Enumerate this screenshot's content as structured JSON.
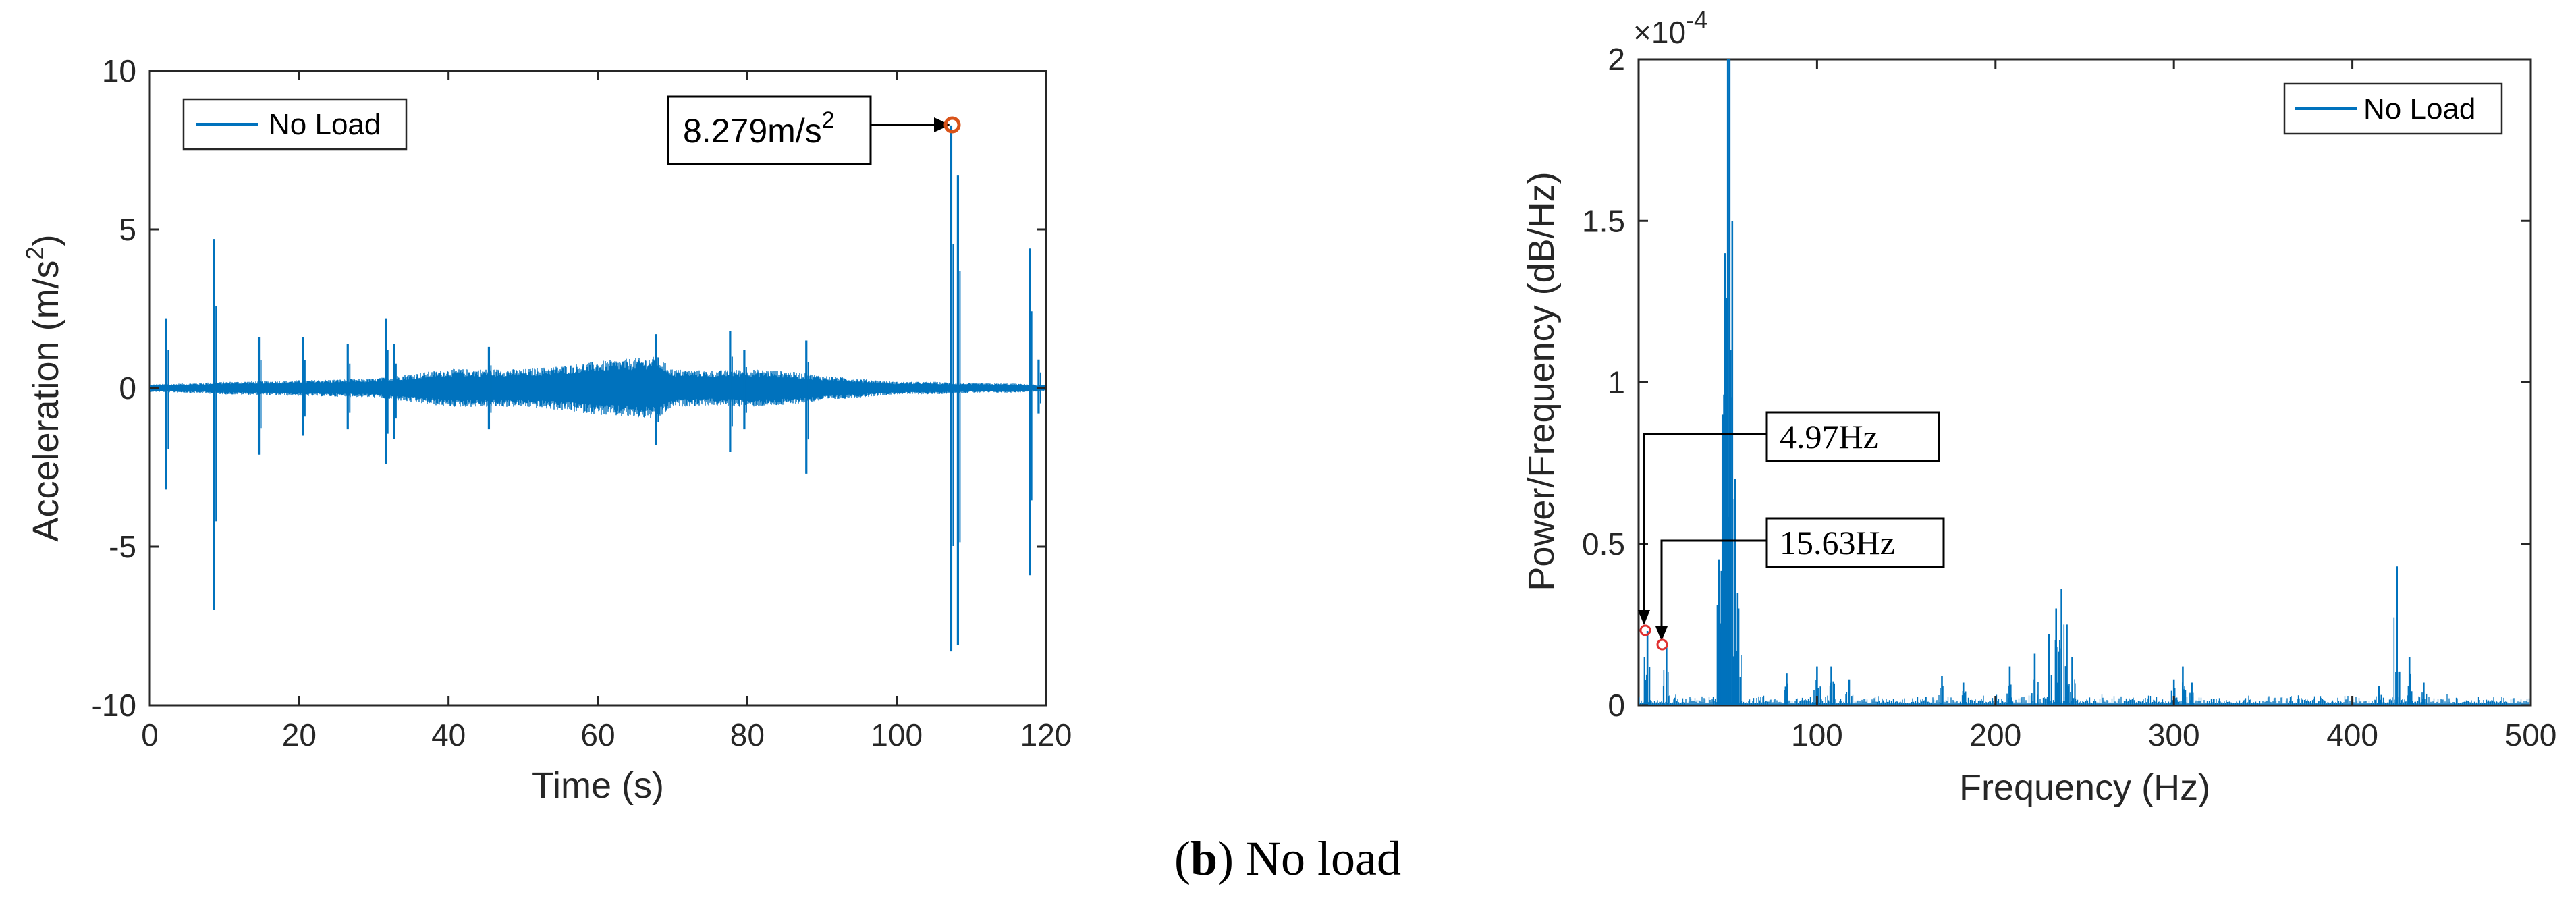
{
  "caption": {
    "label": "b",
    "open": "(",
    "close": ")",
    "text": " No load"
  },
  "colors": {
    "signal": "#0072BD",
    "marker": "#D95319",
    "axis": "#262626",
    "bg": "#ffffff"
  },
  "chart_data": [
    {
      "type": "line",
      "title": "",
      "xlabel": "Time (s)",
      "ylabel_main": "Acceleration (m/s",
      "ylabel_sup": "2",
      "ylabel_close": ")",
      "xlim": [
        0,
        120
      ],
      "ylim": [
        -10,
        10
      ],
      "xticks": [
        0,
        20,
        40,
        60,
        80,
        100,
        120
      ],
      "yticks": [
        10,
        5,
        0,
        -5,
        -10
      ],
      "legend": {
        "label": "No Load",
        "position": "top-left"
      },
      "series": [
        {
          "name": "No Load",
          "baseline_noise": [
            [
              0,
              0.12
            ],
            [
              5,
              0.15
            ],
            [
              10,
              0.2
            ],
            [
              20,
              0.25
            ],
            [
              30,
              0.3
            ],
            [
              35,
              0.45
            ],
            [
              40,
              0.6
            ],
            [
              50,
              0.6
            ],
            [
              55,
              0.7
            ],
            [
              60,
              0.85
            ],
            [
              65,
              0.95
            ],
            [
              68,
              1.0
            ],
            [
              70,
              0.6
            ],
            [
              75,
              0.55
            ],
            [
              80,
              0.6
            ],
            [
              85,
              0.55
            ],
            [
              90,
              0.4
            ],
            [
              95,
              0.3
            ],
            [
              100,
              0.2
            ],
            [
              105,
              0.2
            ],
            [
              110,
              0.15
            ],
            [
              115,
              0.15
            ],
            [
              120,
              0.1
            ]
          ],
          "spikes": [
            {
              "t": 2.2,
              "max": 2.2,
              "min": -3.2
            },
            {
              "t": 8.6,
              "max": 4.7,
              "min": -7.0
            },
            {
              "t": 14.6,
              "max": 1.6,
              "min": -2.1
            },
            {
              "t": 20.5,
              "max": 1.6,
              "min": -1.5
            },
            {
              "t": 26.5,
              "max": 1.4,
              "min": -1.3
            },
            {
              "t": 31.6,
              "max": 2.2,
              "min": -2.4
            },
            {
              "t": 32.7,
              "max": 1.4,
              "min": -1.6
            },
            {
              "t": 45.4,
              "max": 1.3,
              "min": -1.3
            },
            {
              "t": 67.8,
              "max": 1.7,
              "min": -1.8
            },
            {
              "t": 77.7,
              "max": 1.8,
              "min": -2.0
            },
            {
              "t": 79.6,
              "max": 1.2,
              "min": -1.3
            },
            {
              "t": 87.9,
              "max": 1.5,
              "min": -2.7
            },
            {
              "t": 107.3,
              "max": 8.279,
              "min": -8.3
            },
            {
              "t": 108.2,
              "max": 6.7,
              "min": -8.1
            },
            {
              "t": 117.8,
              "max": 4.4,
              "min": -5.9
            },
            {
              "t": 119.0,
              "max": 0.9,
              "min": -0.8
            }
          ]
        }
      ],
      "annotations": [
        {
          "text_main": "8.279m/s",
          "text_sup": "2",
          "x": 107.3,
          "y": 8.279
        }
      ]
    },
    {
      "type": "line",
      "title": "",
      "xlabel": "Frequency (Hz)",
      "ylabel": "Power/Frequency (dB/Hz)",
      "xlim": [
        0,
        500
      ],
      "ylim": [
        0,
        2
      ],
      "exponent": "×10",
      "exponent_sup": "-4",
      "xticks": [
        100,
        200,
        300,
        400,
        500
      ],
      "yticks": [
        "2",
        "1.5",
        "1",
        "0.5",
        "0"
      ],
      "ytick_values": [
        2,
        1.5,
        1,
        0.5,
        0
      ],
      "legend": {
        "label": "No Load",
        "position": "top-right"
      },
      "series": [
        {
          "name": "No Load",
          "peaks": [
            {
              "f": 4.97,
              "p": 0.23
            },
            {
              "f": 15.63,
              "p": 0.19
            },
            {
              "f": 45,
              "p": 0.45
            },
            {
              "f": 47,
              "p": 0.9
            },
            {
              "f": 48.5,
              "p": 1.4
            },
            {
              "f": 50,
              "p": 2.0
            },
            {
              "f": 51,
              "p": 2.0
            },
            {
              "f": 52.5,
              "p": 1.5
            },
            {
              "f": 54,
              "p": 0.7
            },
            {
              "f": 56,
              "p": 0.3
            },
            {
              "f": 83,
              "p": 0.1
            },
            {
              "f": 100,
              "p": 0.12
            },
            {
              "f": 108,
              "p": 0.12
            },
            {
              "f": 118,
              "p": 0.08
            },
            {
              "f": 170,
              "p": 0.09
            },
            {
              "f": 182,
              "p": 0.07
            },
            {
              "f": 208,
              "p": 0.12
            },
            {
              "f": 222,
              "p": 0.16
            },
            {
              "f": 230,
              "p": 0.22
            },
            {
              "f": 234,
              "p": 0.3
            },
            {
              "f": 237,
              "p": 0.36
            },
            {
              "f": 240,
              "p": 0.25
            },
            {
              "f": 243,
              "p": 0.15
            },
            {
              "f": 300,
              "p": 0.08
            },
            {
              "f": 305,
              "p": 0.12
            },
            {
              "f": 310,
              "p": 0.07
            },
            {
              "f": 415,
              "p": 0.06
            },
            {
              "f": 425,
              "p": 0.43
            },
            {
              "f": 432,
              "p": 0.15
            },
            {
              "f": 440,
              "p": 0.07
            }
          ],
          "noise_floor": 0.03
        }
      ],
      "annotations": [
        {
          "text": "4.97Hz",
          "x": 4.97,
          "y": 0.23
        },
        {
          "text": "15.63Hz",
          "x": 15.63,
          "y": 0.19
        }
      ]
    }
  ]
}
